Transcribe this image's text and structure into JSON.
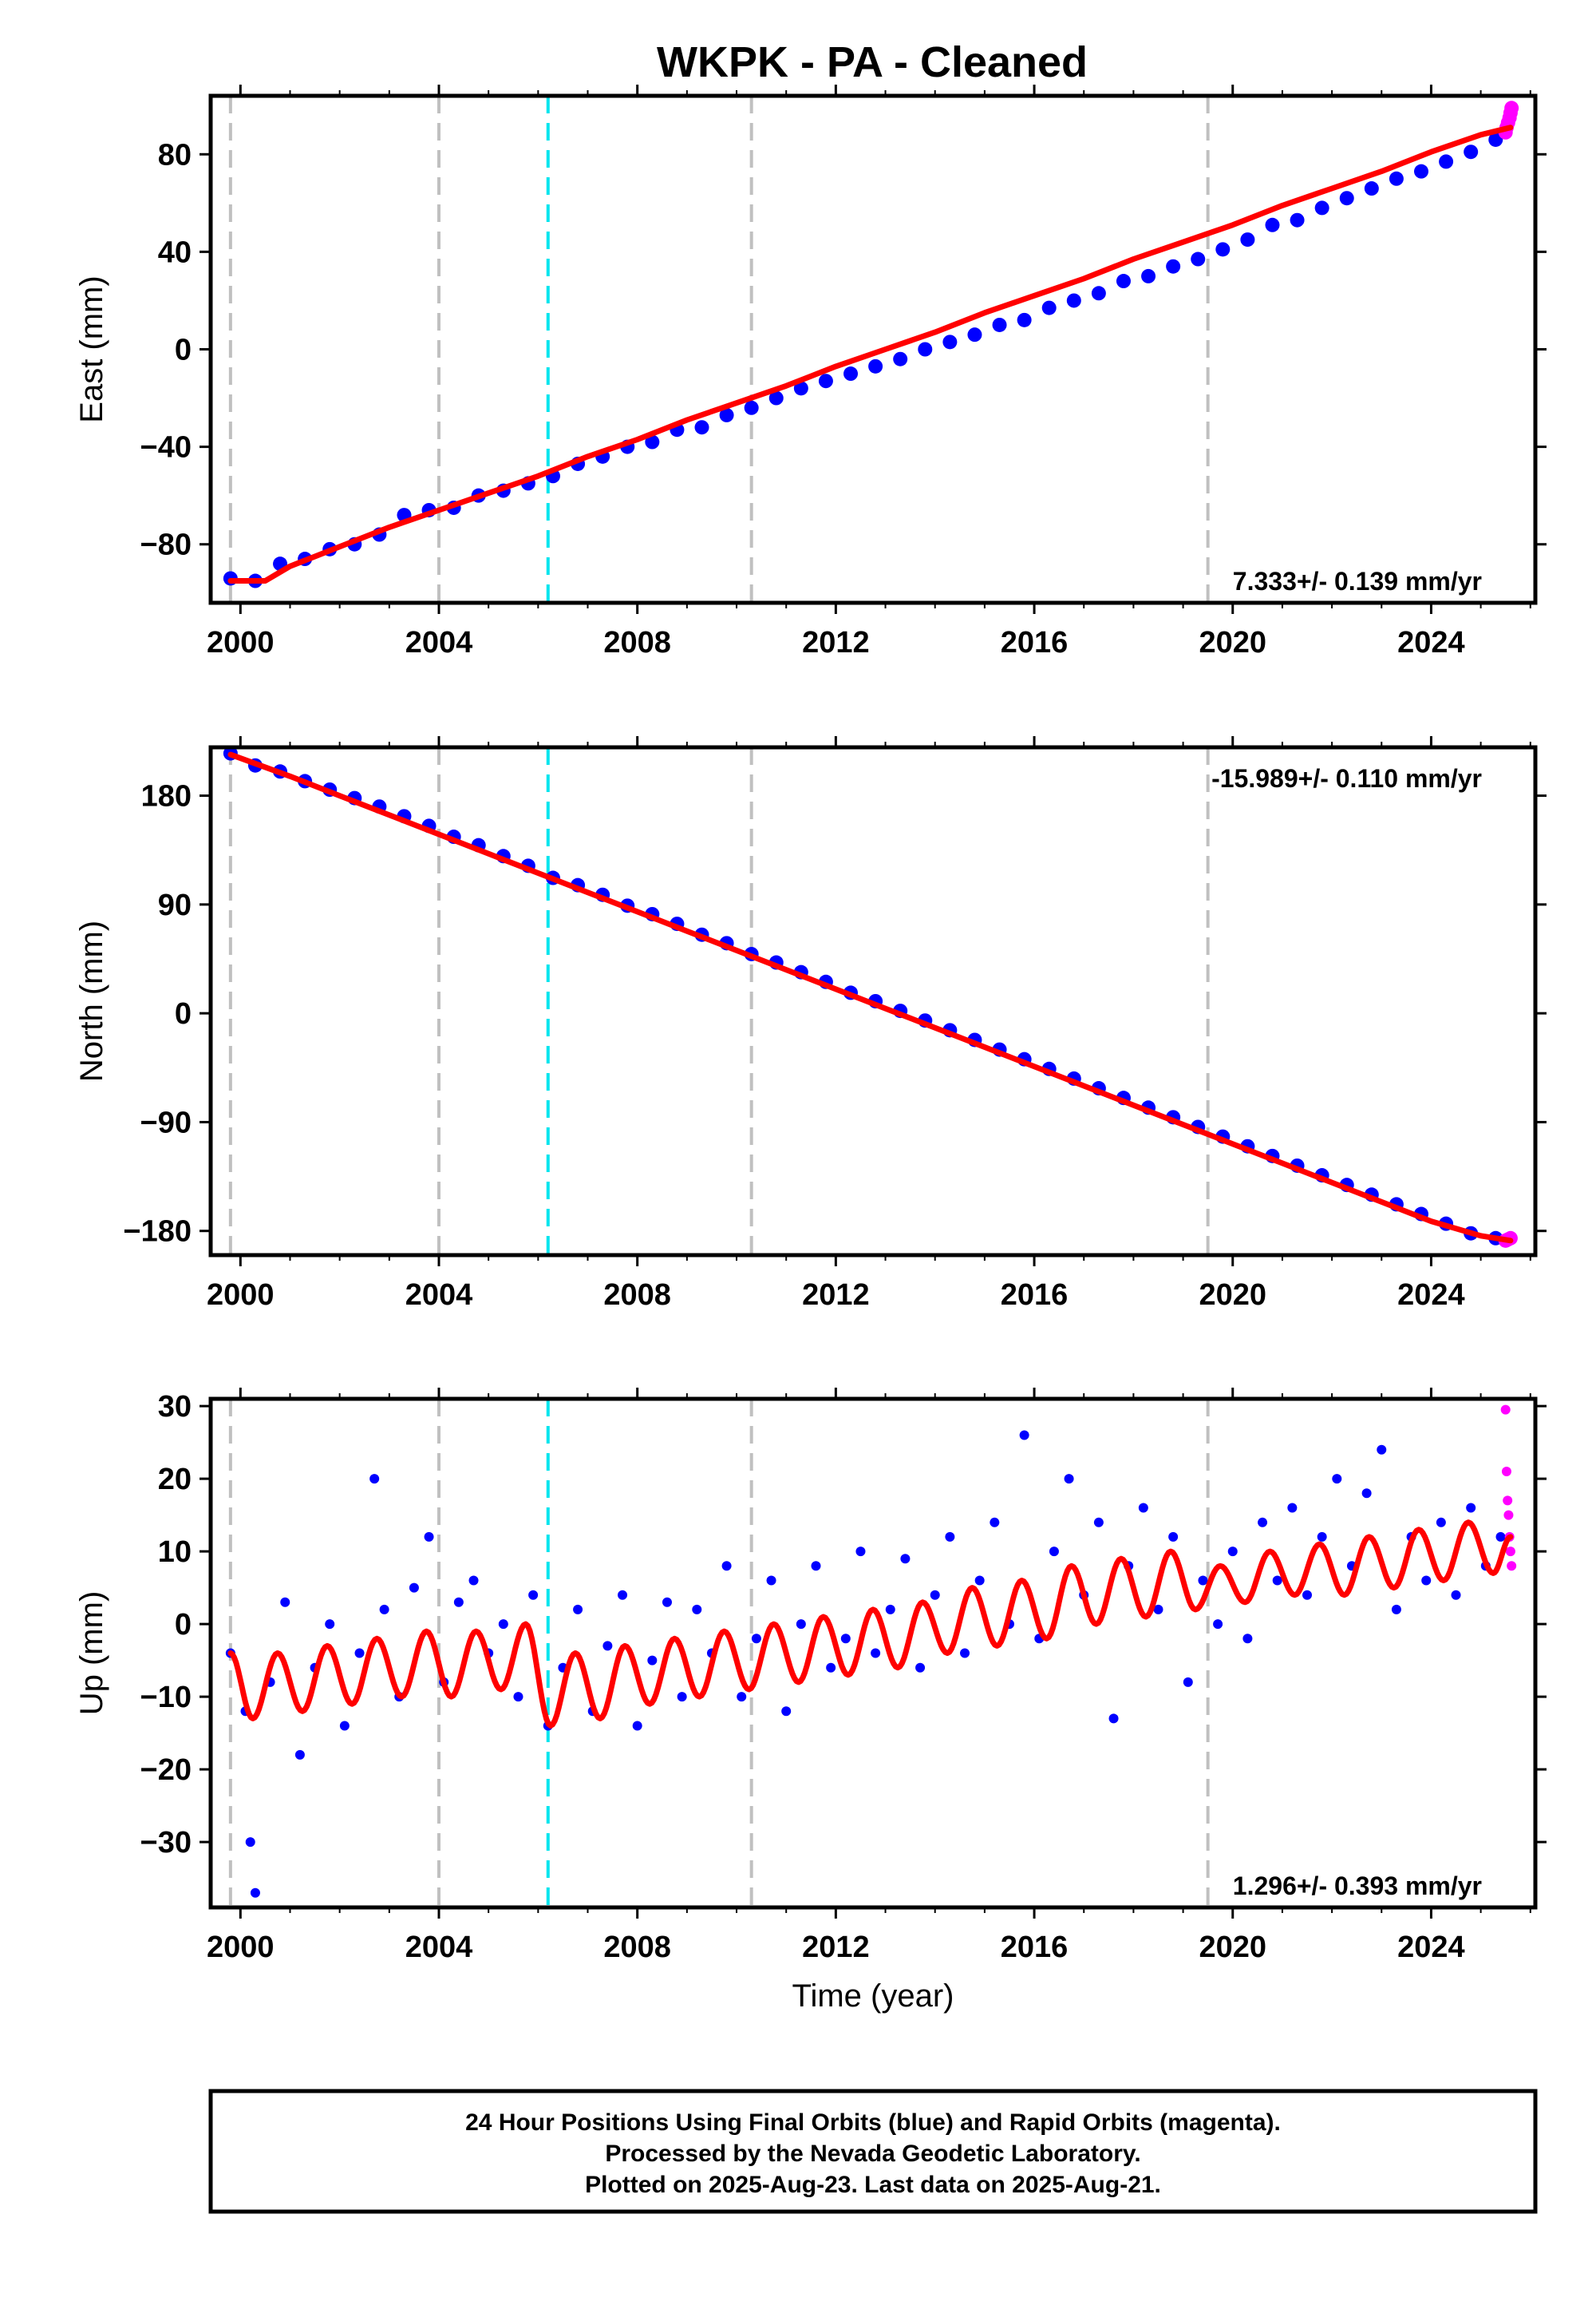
{
  "title": "WKPK  - PA - Cleaned",
  "colors": {
    "final_orbits": "#0000ff",
    "rapid_orbits": "#ff00ff",
    "model_fit": "#ff0000",
    "equipment_change": "#c0c0c0",
    "earthquake": "#00e5ee",
    "frame": "#000000"
  },
  "chart_data": [
    {
      "type": "scatter",
      "panel": "east",
      "ylabel": "East (mm)",
      "xlabel": "",
      "xlim": [
        1999.4,
        2026.1
      ],
      "ylim": [
        -104,
        104
      ],
      "xticks": [
        2000,
        2004,
        2008,
        2012,
        2016,
        2020,
        2024
      ],
      "yticks": [
        -80,
        -40,
        0,
        40,
        80
      ],
      "rate_label": "7.333+/- 0.139 mm/yr",
      "rate_position": "bottom-right",
      "vlines_gray": [
        1999.8,
        2004.0,
        2010.3,
        2019.5
      ],
      "vlines_cyan": [
        2006.2
      ],
      "series": [
        {
          "role": "final_orbits",
          "x": [
            1999.8,
            2000.3,
            2000.8,
            2001.3,
            2001.8,
            2002.3,
            2002.8,
            2003.3,
            2003.8,
            2004.3,
            2004.8,
            2005.3,
            2005.8,
            2006.3,
            2006.8,
            2007.3,
            2007.8,
            2008.3,
            2008.8,
            2009.3,
            2009.8,
            2010.3,
            2010.8,
            2011.3,
            2011.8,
            2012.3,
            2012.8,
            2013.3,
            2013.8,
            2014.3,
            2014.8,
            2015.3,
            2015.8,
            2016.3,
            2016.8,
            2017.3,
            2017.8,
            2018.3,
            2018.8,
            2019.3,
            2019.8,
            2020.3,
            2020.8,
            2021.3,
            2021.8,
            2022.3,
            2022.8,
            2023.3,
            2023.8,
            2024.3,
            2024.8,
            2025.3
          ],
          "y": [
            -94,
            -95,
            -88,
            -86,
            -82,
            -80,
            -76,
            -68,
            -66,
            -65,
            -60,
            -58,
            -55,
            -52,
            -47,
            -44,
            -40,
            -38,
            -33,
            -32,
            -27,
            -24,
            -20,
            -16,
            -13,
            -10,
            -7,
            -4,
            0,
            3,
            6,
            10,
            12,
            17,
            20,
            23,
            28,
            30,
            34,
            37,
            41,
            45,
            51,
            53,
            58,
            62,
            66,
            70,
            73,
            77,
            81,
            86
          ]
        },
        {
          "role": "rapid_orbits",
          "x": [
            2025.5,
            2025.52,
            2025.55,
            2025.58,
            2025.6,
            2025.62
          ],
          "y": [
            89,
            91,
            93,
            95,
            97,
            99
          ]
        },
        {
          "role": "model_fit",
          "type": "line",
          "x": [
            1999.8,
            2000.5,
            2001.0,
            2002.0,
            2003.0,
            2004.0,
            2005.0,
            2006.0,
            2007.0,
            2008.0,
            2009.0,
            2010.0,
            2011.0,
            2012.0,
            2013.0,
            2014.0,
            2015.0,
            2016.0,
            2017.0,
            2018.0,
            2019.0,
            2020.0,
            2021.0,
            2022.0,
            2023.0,
            2024.0,
            2025.0,
            2025.6
          ],
          "y": [
            -95,
            -95,
            -89,
            -81,
            -73,
            -66,
            -59,
            -52,
            -44,
            -37,
            -29,
            -22,
            -15,
            -7,
            0,
            7,
            15,
            22,
            29,
            37,
            44,
            51,
            59,
            66,
            73,
            81,
            88,
            91
          ]
        }
      ]
    },
    {
      "type": "scatter",
      "panel": "north",
      "ylabel": "North (mm)",
      "xlabel": "",
      "xlim": [
        1999.4,
        2026.1
      ],
      "ylim": [
        -200,
        220
      ],
      "xticks": [
        2000,
        2004,
        2008,
        2012,
        2016,
        2020,
        2024
      ],
      "yticks": [
        -180,
        -90,
        0,
        90,
        180
      ],
      "rate_label": "-15.989+/- 0.110 mm/yr",
      "rate_position": "top-right",
      "vlines_gray": [
        1999.8,
        2004.0,
        2010.3,
        2019.5
      ],
      "vlines_cyan": [
        2006.2
      ],
      "series": [
        {
          "role": "final_orbits",
          "x": [
            1999.8,
            2000.3,
            2000.8,
            2001.3,
            2001.8,
            2002.3,
            2002.8,
            2003.3,
            2003.8,
            2004.3,
            2004.8,
            2005.3,
            2005.8,
            2006.3,
            2006.8,
            2007.3,
            2007.8,
            2008.3,
            2008.8,
            2009.3,
            2009.8,
            2010.3,
            2010.8,
            2011.3,
            2011.8,
            2012.3,
            2012.8,
            2013.3,
            2013.8,
            2014.3,
            2014.8,
            2015.3,
            2015.8,
            2016.3,
            2016.8,
            2017.3,
            2017.8,
            2018.3,
            2018.8,
            2019.3,
            2019.8,
            2020.3,
            2020.8,
            2021.3,
            2021.8,
            2022.3,
            2022.8,
            2023.3,
            2023.8,
            2024.3,
            2024.8,
            2025.3
          ],
          "y": [
            215,
            205,
            200,
            192,
            185,
            178,
            171,
            163,
            155,
            146,
            139,
            130,
            122,
            112,
            106,
            98,
            89,
            82,
            74,
            65,
            58,
            49,
            42,
            34,
            26,
            17,
            10,
            2,
            -6,
            -14,
            -22,
            -30,
            -38,
            -46,
            -54,
            -62,
            -70,
            -78,
            -86,
            -94,
            -102,
            -110,
            -118,
            -126,
            -134,
            -142,
            -150,
            -158,
            -166,
            -174,
            -182,
            -186
          ]
        },
        {
          "role": "rapid_orbits",
          "x": [
            2025.5,
            2025.55,
            2025.6
          ],
          "y": [
            -188,
            -187,
            -186
          ]
        },
        {
          "role": "model_fit",
          "type": "line",
          "x": [
            1999.8,
            2001.0,
            2002.0,
            2003.0,
            2004.0,
            2005.0,
            2006.0,
            2007.0,
            2008.0,
            2009.0,
            2010.0,
            2011.0,
            2012.0,
            2013.0,
            2014.0,
            2015.0,
            2016.0,
            2017.0,
            2018.0,
            2019.0,
            2020.0,
            2021.0,
            2022.0,
            2023.0,
            2024.0,
            2025.0,
            2025.6
          ],
          "y": [
            214,
            196,
            180,
            164,
            148,
            132,
            116,
            100,
            84,
            68,
            52,
            36,
            20,
            4,
            -12,
            -28,
            -44,
            -60,
            -76,
            -92,
            -108,
            -124,
            -140,
            -156,
            -172,
            -184,
            -188
          ]
        }
      ]
    },
    {
      "type": "scatter",
      "panel": "up",
      "ylabel": "Up (mm)",
      "xlabel": "Time (year)",
      "xlim": [
        1999.4,
        2026.1
      ],
      "ylim": [
        -39,
        31
      ],
      "xticks": [
        2000,
        2004,
        2008,
        2012,
        2016,
        2020,
        2024
      ],
      "yticks": [
        -30,
        -20,
        -10,
        0,
        10,
        20,
        30
      ],
      "rate_label": "1.296+/- 0.393 mm/yr",
      "rate_position": "bottom-right",
      "vlines_gray": [
        1999.8,
        2004.0,
        2010.3,
        2019.5
      ],
      "vlines_cyan": [
        2006.2
      ],
      "series": [
        {
          "role": "final_orbits",
          "x": [
            1999.8,
            2000.1,
            2000.2,
            2000.3,
            2000.6,
            2000.9,
            2001.2,
            2001.5,
            2001.8,
            2002.1,
            2002.4,
            2002.7,
            2002.9,
            2003.2,
            2003.5,
            2003.8,
            2004.1,
            2004.4,
            2004.7,
            2005.0,
            2005.3,
            2005.6,
            2005.9,
            2006.2,
            2006.5,
            2006.8,
            2007.1,
            2007.4,
            2007.7,
            2008.0,
            2008.3,
            2008.6,
            2008.9,
            2009.2,
            2009.5,
            2009.8,
            2010.1,
            2010.4,
            2010.7,
            2011.0,
            2011.3,
            2011.6,
            2011.9,
            2012.2,
            2012.5,
            2012.8,
            2013.1,
            2013.4,
            2013.7,
            2014.0,
            2014.3,
            2014.6,
            2014.9,
            2015.2,
            2015.5,
            2015.8,
            2016.1,
            2016.4,
            2016.7,
            2017.0,
            2017.3,
            2017.6,
            2017.9,
            2018.2,
            2018.5,
            2018.8,
            2019.1,
            2019.4,
            2019.7,
            2020.0,
            2020.3,
            2020.6,
            2020.9,
            2021.2,
            2021.5,
            2021.8,
            2022.1,
            2022.4,
            2022.7,
            2023.0,
            2023.3,
            2023.6,
            2023.9,
            2024.2,
            2024.5,
            2024.8,
            2025.1,
            2025.4
          ],
          "y": [
            -4,
            -12,
            -30,
            -37,
            -8,
            3,
            -18,
            -6,
            0,
            -14,
            -4,
            20,
            2,
            -10,
            5,
            12,
            -8,
            3,
            6,
            -4,
            0,
            -10,
            4,
            -14,
            -6,
            2,
            -12,
            -3,
            4,
            -14,
            -5,
            3,
            -10,
            2,
            -4,
            8,
            -10,
            -2,
            6,
            -12,
            0,
            8,
            -6,
            -2,
            10,
            -4,
            2,
            9,
            -6,
            4,
            12,
            -4,
            6,
            14,
            0,
            26,
            -2,
            10,
            20,
            4,
            14,
            -13,
            8,
            16,
            2,
            12,
            -8,
            6,
            0,
            10,
            -2,
            14,
            6,
            16,
            4,
            12,
            20,
            8,
            18,
            24,
            2,
            12,
            6,
            14,
            4,
            16,
            8,
            12
          ]
        },
        {
          "role": "rapid_orbits",
          "x": [
            2025.5,
            2025.52,
            2025.54,
            2025.56,
            2025.58,
            2025.6,
            2025.62
          ],
          "y": [
            29.5,
            21,
            17,
            15,
            12,
            10,
            8
          ]
        },
        {
          "role": "model_fit",
          "type": "line",
          "amplitude": 5,
          "phase_year": 0.25,
          "x": [
            1999.8,
            2000.25,
            2000.75,
            2001.25,
            2001.75,
            2002.25,
            2002.75,
            2003.25,
            2003.75,
            2004.25,
            2004.75,
            2005.25,
            2005.75,
            2006.25,
            2006.75,
            2007.25,
            2007.75,
            2008.25,
            2008.75,
            2009.25,
            2009.75,
            2010.25,
            2010.75,
            2011.25,
            2011.75,
            2012.25,
            2012.75,
            2013.25,
            2013.75,
            2014.25,
            2014.75,
            2015.25,
            2015.75,
            2016.25,
            2016.75,
            2017.25,
            2017.75,
            2018.25,
            2018.75,
            2019.25,
            2019.75,
            2020.25,
            2020.75,
            2021.25,
            2021.75,
            2022.25,
            2022.75,
            2023.25,
            2023.75,
            2024.25,
            2024.75,
            2025.25,
            2025.6
          ],
          "y": [
            -4,
            -13,
            -4,
            -12,
            -3,
            -11,
            -2,
            -10,
            -1,
            -10,
            -1,
            -9,
            0,
            -14,
            -4,
            -13,
            -3,
            -11,
            -2,
            -10,
            -1,
            -9,
            0,
            -8,
            1,
            -7,
            2,
            -6,
            3,
            -4,
            5,
            -3,
            6,
            -2,
            8,
            0,
            9,
            1,
            10,
            2,
            8,
            3,
            10,
            4,
            11,
            4,
            12,
            5,
            13,
            6,
            14,
            7,
            12
          ]
        }
      ]
    }
  ],
  "caption": {
    "line1": "24 Hour Positions Using Final Orbits (blue) and Rapid Orbits (magenta).",
    "line2": "Processed by the Nevada Geodetic Laboratory.",
    "line3": "Plotted on 2025-Aug-23. Last data on 2025-Aug-21."
  }
}
